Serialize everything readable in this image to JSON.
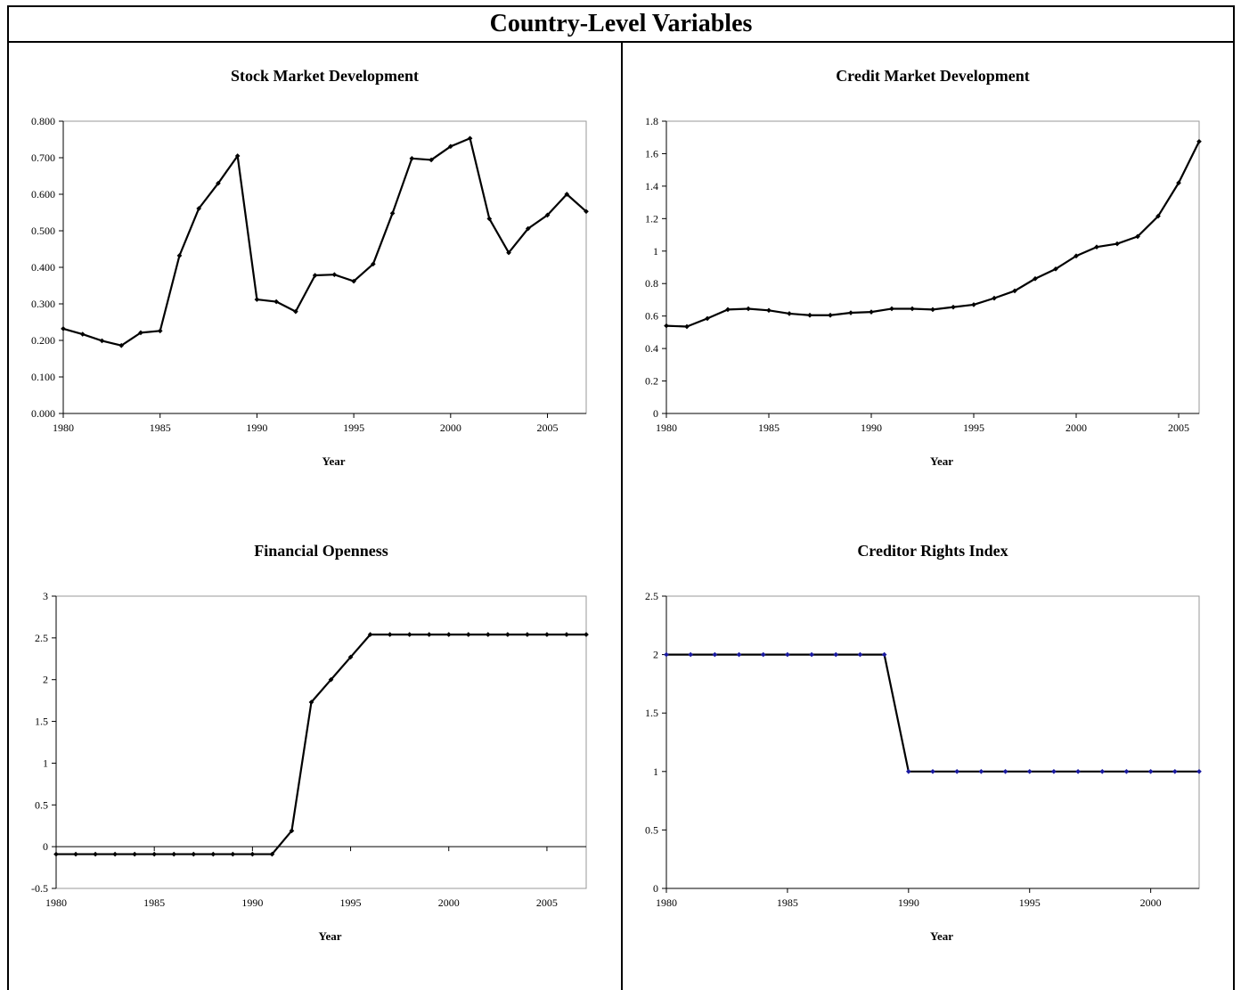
{
  "page_title": "Country-Level Variables",
  "chart_data": [
    {
      "type": "line",
      "title": "Stock Market Development",
      "xlabel": "Year",
      "ylabel": "",
      "x": [
        1980,
        1981,
        1982,
        1983,
        1984,
        1985,
        1986,
        1987,
        1988,
        1989,
        1990,
        1991,
        1992,
        1993,
        1994,
        1995,
        1996,
        1997,
        1998,
        1999,
        2000,
        2001,
        2002,
        2003,
        2004,
        2005,
        2006,
        2007
      ],
      "series": [
        {
          "values": [
            0.232,
            0.217,
            0.199,
            0.186,
            0.221,
            0.226,
            0.432,
            0.561,
            0.63,
            0.705,
            0.312,
            0.306,
            0.279,
            0.378,
            0.38,
            0.362,
            0.409,
            0.548,
            0.698,
            0.694,
            0.731,
            0.753,
            0.533,
            0.44,
            0.506,
            0.543,
            0.6,
            0.553
          ]
        }
      ],
      "xlim": [
        1980,
        2007
      ],
      "ylim": [
        0,
        0.8
      ],
      "xticks": [
        1980,
        1985,
        1990,
        1995,
        2000,
        2005
      ],
      "yticks": [
        "0.000",
        "0.100",
        "0.200",
        "0.300",
        "0.400",
        "0.500",
        "0.600",
        "0.700",
        "0.800"
      ],
      "line_color": "#000000",
      "marker_color": "#000000",
      "grid": false
    },
    {
      "type": "line",
      "title": "Credit Market Development",
      "xlabel": "Year",
      "ylabel": "",
      "x": [
        1980,
        1981,
        1982,
        1983,
        1984,
        1985,
        1986,
        1987,
        1988,
        1989,
        1990,
        1991,
        1992,
        1993,
        1994,
        1995,
        1996,
        1997,
        1998,
        1999,
        2000,
        2001,
        2002,
        2003,
        2004,
        2005,
        2006
      ],
      "series": [
        {
          "values": [
            0.54,
            0.535,
            0.585,
            0.64,
            0.645,
            0.635,
            0.615,
            0.605,
            0.605,
            0.62,
            0.625,
            0.645,
            0.645,
            0.64,
            0.655,
            0.67,
            0.71,
            0.755,
            0.83,
            0.89,
            0.97,
            1.025,
            1.045,
            1.09,
            1.215,
            1.42,
            1.675
          ]
        }
      ],
      "xlim": [
        1980,
        2006
      ],
      "ylim": [
        0,
        1.8
      ],
      "xticks": [
        1980,
        1985,
        1990,
        1995,
        2000,
        2005
      ],
      "yticks": [
        "0",
        "0.2",
        "0.4",
        "0.6",
        "0.8",
        "1",
        "1.2",
        "1.4",
        "1.6",
        "1.8"
      ],
      "line_color": "#000000",
      "marker_color": "#000000",
      "grid": false
    },
    {
      "type": "line",
      "title": "Financial Openness",
      "xlabel": "Year",
      "ylabel": "",
      "x": [
        1980,
        1981,
        1982,
        1983,
        1984,
        1985,
        1986,
        1987,
        1988,
        1989,
        1990,
        1991,
        1992,
        1993,
        1994,
        1995,
        1996,
        1997,
        1998,
        1999,
        2000,
        2001,
        2002,
        2003,
        2004,
        2005,
        2006,
        2007
      ],
      "series": [
        {
          "values": [
            -0.09,
            -0.09,
            -0.09,
            -0.09,
            -0.09,
            -0.09,
            -0.09,
            -0.09,
            -0.09,
            -0.09,
            -0.09,
            -0.09,
            0.19,
            1.73,
            2.0,
            2.27,
            2.54,
            2.54,
            2.54,
            2.54,
            2.54,
            2.54,
            2.54,
            2.54,
            2.54,
            2.54,
            2.54,
            2.54
          ]
        }
      ],
      "xlim": [
        1980,
        2007
      ],
      "ylim": [
        -0.5,
        3
      ],
      "xticks": [
        1980,
        1985,
        1990,
        1995,
        2000,
        2005
      ],
      "yticks": [
        "-0.5",
        "0",
        "0.5",
        "1",
        "1.5",
        "2",
        "2.5",
        "3"
      ],
      "zero_line": true,
      "line_color": "#000000",
      "marker_color": "#000000",
      "grid": false
    },
    {
      "type": "line",
      "title": "Creditor Rights Index",
      "xlabel": "Year",
      "ylabel": "",
      "x": [
        1980,
        1981,
        1982,
        1983,
        1984,
        1985,
        1986,
        1987,
        1988,
        1989,
        1990,
        1991,
        1992,
        1993,
        1994,
        1995,
        1996,
        1997,
        1998,
        1999,
        2000,
        2001,
        2002
      ],
      "series": [
        {
          "values": [
            2,
            2,
            2,
            2,
            2,
            2,
            2,
            2,
            2,
            2,
            1,
            1,
            1,
            1,
            1,
            1,
            1,
            1,
            1,
            1,
            1,
            1,
            1
          ]
        }
      ],
      "xlim": [
        1980,
        2002
      ],
      "ylim": [
        0,
        2.5
      ],
      "xticks": [
        1980,
        1985,
        1990,
        1995,
        2000
      ],
      "yticks": [
        "0",
        "0.5",
        "1",
        "1.5",
        "2",
        "2.5"
      ],
      "line_color": "#000000",
      "marker_color": "#1a1aa0",
      "grid": false
    }
  ]
}
